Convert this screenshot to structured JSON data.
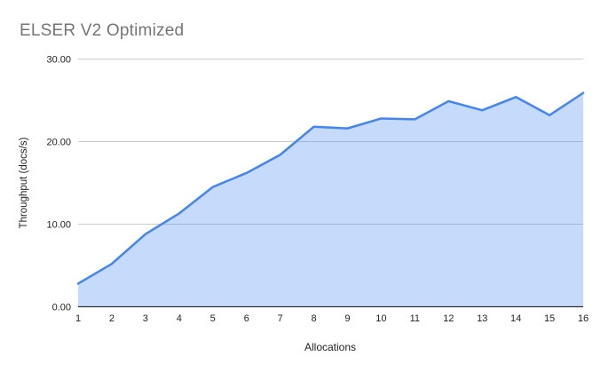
{
  "chart_data": {
    "type": "area",
    "title": "ELSER V2 Optimized",
    "xlabel": "Allocations",
    "ylabel": "Throughput (docs/s)",
    "x": [
      1,
      2,
      3,
      4,
      5,
      6,
      7,
      8,
      9,
      10,
      11,
      12,
      13,
      14,
      15,
      16
    ],
    "values": [
      2.8,
      5.2,
      8.8,
      11.3,
      14.5,
      16.2,
      18.4,
      21.8,
      21.6,
      22.8,
      22.7,
      24.9,
      23.8,
      25.4,
      23.2,
      25.9
    ],
    "ylim": [
      0,
      30
    ],
    "yticks": [
      0,
      10,
      20,
      30
    ],
    "ytick_labels": [
      "0.00",
      "10.00",
      "20.00",
      "30.00"
    ],
    "grid": true,
    "legend": "none"
  },
  "colors": {
    "line": "#4285f4",
    "area_fill": "#4285f4",
    "gridline": "#cccccc",
    "axis_line": "#333333",
    "title_text": "#757575",
    "tick_text": "#222222"
  }
}
